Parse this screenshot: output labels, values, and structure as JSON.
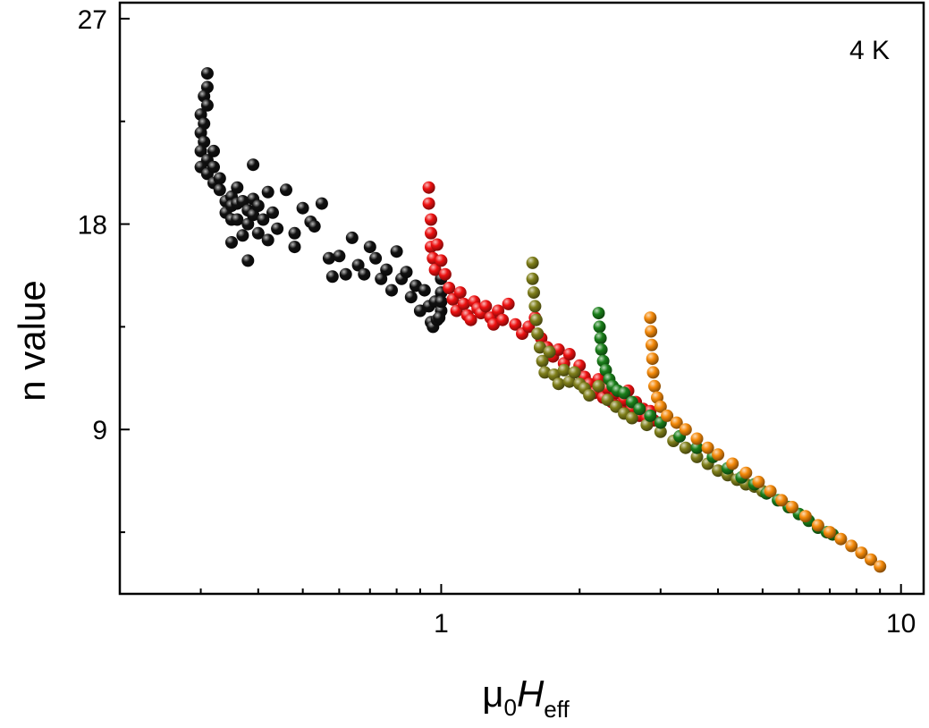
{
  "chart_data": {
    "type": "scatter",
    "annotation": "4 K",
    "xlabel": {
      "prefix": "μ",
      "prefix_sub": "0",
      "main": "H",
      "main_sub": "eff"
    },
    "ylabel": "n value",
    "xscale": "log",
    "xlim": [
      0.2,
      11.2
    ],
    "ylim": [
      1.8,
      27.7
    ],
    "x_ticks": [
      1,
      10
    ],
    "x_tick_labels": [
      "1",
      "10"
    ],
    "y_ticks": [
      9,
      18,
      27
    ],
    "y_tick_labels": [
      "9",
      "18",
      "27"
    ],
    "grid": false,
    "legend": "none",
    "series": [
      {
        "color": "#111111",
        "points": [
          [
            0.31,
            24.6
          ],
          [
            0.31,
            24.0
          ],
          [
            0.305,
            23.6
          ],
          [
            0.31,
            23.2
          ],
          [
            0.3,
            22.8
          ],
          [
            0.305,
            22.4
          ],
          [
            0.3,
            22.0
          ],
          [
            0.305,
            21.6
          ],
          [
            0.3,
            21.2
          ],
          [
            0.31,
            20.8
          ],
          [
            0.3,
            20.5
          ],
          [
            0.31,
            20.2
          ],
          [
            0.32,
            21.2
          ],
          [
            0.32,
            20.5
          ],
          [
            0.32,
            19.8
          ],
          [
            0.33,
            20.0
          ],
          [
            0.33,
            19.5
          ],
          [
            0.34,
            19.0
          ],
          [
            0.34,
            18.5
          ],
          [
            0.35,
            19.2
          ],
          [
            0.35,
            18.8
          ],
          [
            0.35,
            18.2
          ],
          [
            0.35,
            17.2
          ],
          [
            0.36,
            19.6
          ],
          [
            0.36,
            18.9
          ],
          [
            0.36,
            18.2
          ],
          [
            0.37,
            17.5
          ],
          [
            0.37,
            19.0
          ],
          [
            0.38,
            18.6
          ],
          [
            0.38,
            18.0
          ],
          [
            0.38,
            16.4
          ],
          [
            0.39,
            20.6
          ],
          [
            0.39,
            19.1
          ],
          [
            0.39,
            18.4
          ],
          [
            0.4,
            17.6
          ],
          [
            0.4,
            18.8
          ],
          [
            0.41,
            18.2
          ],
          [
            0.42,
            19.4
          ],
          [
            0.42,
            17.3
          ],
          [
            0.43,
            18.5
          ],
          [
            0.44,
            17.8
          ],
          [
            0.46,
            19.5
          ],
          [
            0.48,
            17.6
          ],
          [
            0.48,
            17.0
          ],
          [
            0.5,
            18.7
          ],
          [
            0.52,
            18.1
          ],
          [
            0.53,
            17.9
          ],
          [
            0.55,
            18.9
          ],
          [
            0.57,
            16.5
          ],
          [
            0.58,
            15.7
          ],
          [
            0.6,
            16.6
          ],
          [
            0.62,
            15.8
          ],
          [
            0.64,
            17.4
          ],
          [
            0.66,
            16.2
          ],
          [
            0.68,
            15.8
          ],
          [
            0.7,
            17.0
          ],
          [
            0.72,
            16.5
          ],
          [
            0.74,
            15.6
          ],
          [
            0.76,
            16.0
          ],
          [
            0.78,
            15.1
          ],
          [
            0.8,
            16.8
          ],
          [
            0.82,
            15.6
          ],
          [
            0.84,
            15.9
          ],
          [
            0.86,
            14.8
          ],
          [
            0.88,
            15.3
          ],
          [
            0.9,
            14.2
          ],
          [
            0.92,
            15.1
          ],
          [
            0.94,
            14.4
          ],
          [
            0.95,
            13.7
          ],
          [
            0.96,
            13.5
          ],
          [
            0.97,
            14.6
          ],
          [
            0.98,
            13.8
          ],
          [
            1.0,
            14.2
          ],
          [
            1.0,
            15.0
          ],
          [
            1.0,
            15.6
          ],
          [
            1.0,
            14.6
          ],
          [
            0.99,
            13.9
          ]
        ]
      },
      {
        "color": "#ee1111",
        "points": [
          [
            0.94,
            19.6
          ],
          [
            0.94,
            18.9
          ],
          [
            0.95,
            18.2
          ],
          [
            0.95,
            17.6
          ],
          [
            0.95,
            17.0
          ],
          [
            0.96,
            16.5
          ],
          [
            0.97,
            16.0
          ],
          [
            0.98,
            17.1
          ],
          [
            1.0,
            16.4
          ],
          [
            1.02,
            15.8
          ],
          [
            1.04,
            15.2
          ],
          [
            1.06,
            14.7
          ],
          [
            1.08,
            14.2
          ],
          [
            1.1,
            15.0
          ],
          [
            1.12,
            14.5
          ],
          [
            1.14,
            14.0
          ],
          [
            1.16,
            13.8
          ],
          [
            1.18,
            14.6
          ],
          [
            1.2,
            14.3
          ],
          [
            1.22,
            14.1
          ],
          [
            1.25,
            14.4
          ],
          [
            1.28,
            13.9
          ],
          [
            1.3,
            13.6
          ],
          [
            1.33,
            14.2
          ],
          [
            1.36,
            13.8
          ],
          [
            1.4,
            14.5
          ],
          [
            1.45,
            13.6
          ],
          [
            1.5,
            13.2
          ],
          [
            1.55,
            13.5
          ],
          [
            1.6,
            13.9
          ],
          [
            1.65,
            13.0
          ],
          [
            1.7,
            12.6
          ],
          [
            1.75,
            12.2
          ],
          [
            1.8,
            12.5
          ],
          [
            1.85,
            11.9
          ],
          [
            1.9,
            12.3
          ],
          [
            2.0,
            11.8
          ],
          [
            2.05,
            11.3
          ],
          [
            2.1,
            11.0
          ],
          [
            2.15,
            10.6
          ],
          [
            2.2,
            11.2
          ],
          [
            2.25,
            10.4
          ],
          [
            2.3,
            10.8
          ],
          [
            2.35,
            10.2
          ],
          [
            2.4,
            10.6
          ],
          [
            2.45,
            10.0
          ],
          [
            2.5,
            10.3
          ],
          [
            2.55,
            10.7
          ],
          [
            2.6,
            9.9
          ],
          [
            2.65,
            10.2
          ],
          [
            2.7,
            9.6
          ],
          [
            2.75,
            9.9
          ],
          [
            2.8,
            9.5
          ],
          [
            2.85,
            9.8
          ],
          [
            2.9,
            9.4
          ]
        ]
      },
      {
        "color": "#7f7f1a",
        "points": [
          [
            1.58,
            16.3
          ],
          [
            1.58,
            15.6
          ],
          [
            1.59,
            15.0
          ],
          [
            1.6,
            14.4
          ],
          [
            1.61,
            13.8
          ],
          [
            1.62,
            13.2
          ],
          [
            1.64,
            12.6
          ],
          [
            1.66,
            12.0
          ],
          [
            1.68,
            11.5
          ],
          [
            1.72,
            12.4
          ],
          [
            1.76,
            11.4
          ],
          [
            1.8,
            11.0
          ],
          [
            1.85,
            11.6
          ],
          [
            1.9,
            11.1
          ],
          [
            1.95,
            11.5
          ],
          [
            2.0,
            11.0
          ],
          [
            2.05,
            10.8
          ],
          [
            2.1,
            10.5
          ],
          [
            2.2,
            10.9
          ],
          [
            2.3,
            10.3
          ],
          [
            2.4,
            10.0
          ],
          [
            2.5,
            9.7
          ],
          [
            2.6,
            9.5
          ],
          [
            2.8,
            9.2
          ],
          [
            3.0,
            8.9
          ],
          [
            3.2,
            8.5
          ],
          [
            3.4,
            8.2
          ],
          [
            3.6,
            7.8
          ],
          [
            3.8,
            7.5
          ],
          [
            4.0,
            7.2
          ],
          [
            4.2,
            7.0
          ],
          [
            4.4,
            6.8
          ],
          [
            4.6,
            6.6
          ],
          [
            4.8,
            6.5
          ],
          [
            5.0,
            6.3
          ]
        ]
      },
      {
        "color": "#1a7f1a",
        "points": [
          [
            2.2,
            14.1
          ],
          [
            2.21,
            13.5
          ],
          [
            2.22,
            13.0
          ],
          [
            2.23,
            12.5
          ],
          [
            2.25,
            12.0
          ],
          [
            2.28,
            11.6
          ],
          [
            2.32,
            11.2
          ],
          [
            2.36,
            10.9
          ],
          [
            2.42,
            10.7
          ],
          [
            2.5,
            10.6
          ],
          [
            2.6,
            10.2
          ],
          [
            2.7,
            9.9
          ],
          [
            2.85,
            9.6
          ],
          [
            3.0,
            9.3
          ],
          [
            3.3,
            8.7
          ],
          [
            3.6,
            8.2
          ],
          [
            3.9,
            7.8
          ],
          [
            4.2,
            7.3
          ],
          [
            4.5,
            6.9
          ],
          [
            4.8,
            6.6
          ],
          [
            5.1,
            6.2
          ],
          [
            5.4,
            5.9
          ],
          [
            5.7,
            5.6
          ],
          [
            6.0,
            5.3
          ],
          [
            6.3,
            5.0
          ],
          [
            6.6,
            4.7
          ],
          [
            6.9,
            4.5
          ],
          [
            7.1,
            4.4
          ]
        ]
      },
      {
        "color": "#f58a0a",
        "points": [
          [
            2.85,
            13.9
          ],
          [
            2.86,
            13.3
          ],
          [
            2.87,
            12.7
          ],
          [
            2.88,
            12.1
          ],
          [
            2.89,
            11.5
          ],
          [
            2.91,
            10.9
          ],
          [
            2.95,
            10.4
          ],
          [
            3.0,
            10.0
          ],
          [
            3.1,
            9.6
          ],
          [
            3.25,
            9.3
          ],
          [
            3.4,
            9.0
          ],
          [
            3.6,
            8.6
          ],
          [
            3.8,
            8.2
          ],
          [
            4.0,
            7.9
          ],
          [
            4.3,
            7.5
          ],
          [
            4.6,
            7.1
          ],
          [
            4.9,
            6.7
          ],
          [
            5.2,
            6.3
          ],
          [
            5.5,
            5.9
          ],
          [
            5.8,
            5.6
          ],
          [
            6.2,
            5.2
          ],
          [
            6.6,
            4.8
          ],
          [
            7.0,
            4.5
          ],
          [
            7.4,
            4.2
          ],
          [
            7.8,
            3.9
          ],
          [
            8.2,
            3.6
          ],
          [
            8.6,
            3.3
          ],
          [
            9.0,
            3.0
          ]
        ]
      }
    ]
  }
}
